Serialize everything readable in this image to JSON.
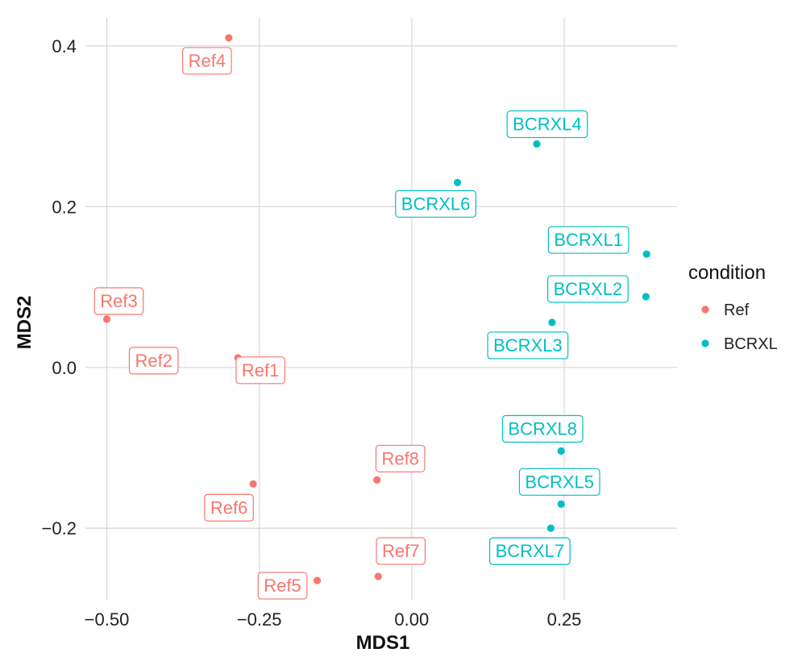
{
  "chart_data": {
    "type": "scatter",
    "title": "",
    "xlabel": "MDS1",
    "ylabel": "MDS2",
    "xlim": [
      -0.535,
      0.435
    ],
    "ylim": [
      -0.29,
      0.435
    ],
    "x_ticks": [
      -0.5,
      -0.25,
      0,
      0.25
    ],
    "x_tick_labels": [
      "−0.50",
      "−0.25",
      "0.00",
      "0.25"
    ],
    "y_ticks": [
      -0.2,
      0,
      0.2,
      0.4
    ],
    "y_tick_labels": [
      "−0.2",
      "0.0",
      "0.2",
      "0.4"
    ],
    "grid": true,
    "legend": {
      "title": "condition",
      "position": "right",
      "entries": [
        {
          "label": "Ref",
          "color": "#F8766D"
        },
        {
          "label": "BCRXL",
          "color": "#00BFC4"
        }
      ]
    },
    "series": [
      {
        "name": "Ref",
        "color": "#F8766D",
        "points": [
          {
            "label": "Ref1",
            "x": -0.285,
            "y": 0.012
          },
          {
            "label": "Ref2",
            "x": -0.39,
            "y": 0.018
          },
          {
            "label": "Ref3",
            "x": -0.5,
            "y": 0.06
          },
          {
            "label": "Ref4",
            "x": -0.3,
            "y": 0.41
          },
          {
            "label": "Ref5",
            "x": -0.155,
            "y": -0.265
          },
          {
            "label": "Ref6",
            "x": -0.26,
            "y": -0.145
          },
          {
            "label": "Ref7",
            "x": -0.055,
            "y": -0.26
          },
          {
            "label": "Ref8",
            "x": -0.057,
            "y": -0.14
          }
        ]
      },
      {
        "name": "BCRXL",
        "color": "#00BFC4",
        "points": [
          {
            "label": "BCRXL1",
            "x": 0.385,
            "y": 0.141
          },
          {
            "label": "BCRXL2",
            "x": 0.384,
            "y": 0.088
          },
          {
            "label": "BCRXL3",
            "x": 0.23,
            "y": 0.056
          },
          {
            "label": "BCRXL4",
            "x": 0.205,
            "y": 0.278
          },
          {
            "label": "BCRXL5",
            "x": 0.245,
            "y": -0.17
          },
          {
            "label": "BCRXL6",
            "x": 0.075,
            "y": 0.23
          },
          {
            "label": "BCRXL7",
            "x": 0.228,
            "y": -0.2
          },
          {
            "label": "BCRXL8",
            "x": 0.245,
            "y": -0.104
          }
        ]
      }
    ]
  }
}
